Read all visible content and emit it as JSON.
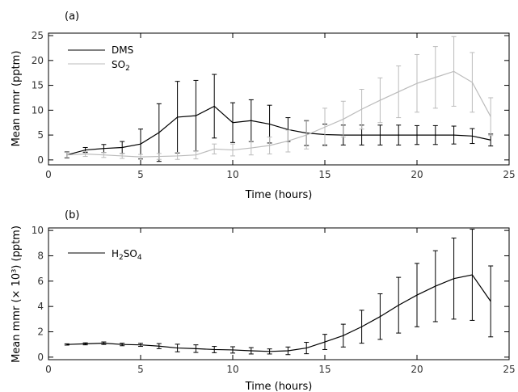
{
  "chart_data": [
    {
      "type": "line",
      "panel_label": "(a)",
      "xlabel": "Time (hours)",
      "ylabel": "Mean mmr (pptm)",
      "xlim": [
        0,
        25
      ],
      "ylim": [
        -1,
        25.5
      ],
      "xticks": [
        0,
        5,
        10,
        15,
        20,
        25
      ],
      "yticks": [
        0,
        5,
        10,
        15,
        20,
        25
      ],
      "grid": false,
      "legend_position": "top-left",
      "x": [
        1,
        2,
        3,
        4,
        5,
        6,
        7,
        8,
        9,
        10,
        11,
        12,
        13,
        14,
        15,
        16,
        17,
        18,
        19,
        20,
        21,
        22,
        23,
        24
      ],
      "series": [
        {
          "name": "DMS",
          "legend_base": "DMS",
          "legend_sub": "",
          "color": "#000000",
          "values": [
            1.0,
            2.0,
            2.3,
            2.5,
            3.2,
            5.5,
            8.6,
            8.9,
            10.8,
            7.5,
            7.9,
            7.2,
            6.1,
            5.4,
            5.1,
            5.0,
            5.0,
            5.0,
            5.0,
            5.0,
            5.0,
            5.0,
            4.8,
            4.0
          ],
          "err": [
            0.6,
            0.5,
            0.8,
            1.2,
            3.0,
            5.8,
            7.2,
            7.1,
            6.4,
            4.0,
            4.2,
            3.8,
            2.4,
            2.5,
            2.1,
            2.0,
            2.0,
            2.0,
            2.0,
            1.9,
            1.9,
            1.8,
            1.5,
            1.2
          ]
        },
        {
          "name": "SO2",
          "legend_base": "SO",
          "legend_sub": "2",
          "color": "#bbbbbb",
          "values": [
            1.0,
            1.2,
            1.0,
            0.8,
            0.6,
            0.7,
            0.8,
            1.0,
            2.2,
            2.0,
            2.4,
            2.9,
            3.8,
            5.0,
            6.6,
            8.2,
            10.2,
            12.0,
            13.7,
            15.4,
            16.6,
            17.8,
            15.6,
            8.7
          ],
          "err": [
            0.5,
            0.5,
            0.5,
            0.5,
            0.5,
            0.6,
            0.7,
            0.8,
            1.0,
            1.2,
            1.4,
            1.7,
            2.2,
            2.8,
            3.8,
            3.6,
            4.0,
            4.5,
            5.2,
            5.8,
            6.2,
            7.0,
            6.0,
            3.8
          ]
        }
      ]
    },
    {
      "type": "line",
      "panel_label": "(b)",
      "xlabel": "Time (hours)",
      "ylabel": "Mean mmr (× 10³) (pptm)",
      "xlim": [
        0,
        25
      ],
      "ylim": [
        -0.2,
        10.2
      ],
      "xticks": [
        0,
        5,
        10,
        15,
        20,
        25
      ],
      "yticks": [
        0,
        2,
        4,
        6,
        8,
        10
      ],
      "grid": false,
      "legend_position": "top-left",
      "x": [
        1,
        2,
        3,
        4,
        5,
        6,
        7,
        8,
        9,
        10,
        11,
        12,
        13,
        14,
        15,
        16,
        17,
        18,
        19,
        20,
        21,
        22,
        23,
        24
      ],
      "series": [
        {
          "name": "H2SO4",
          "legend_parts": [
            "H",
            "2",
            "SO",
            "4"
          ],
          "color": "#000000",
          "values": [
            1.0,
            1.05,
            1.1,
            1.0,
            0.97,
            0.87,
            0.72,
            0.67,
            0.6,
            0.57,
            0.5,
            0.45,
            0.5,
            0.72,
            1.2,
            1.7,
            2.4,
            3.2,
            4.1,
            4.9,
            5.6,
            6.2,
            6.5,
            4.4
          ],
          "err": [
            0.05,
            0.08,
            0.1,
            0.1,
            0.12,
            0.2,
            0.3,
            0.3,
            0.25,
            0.25,
            0.25,
            0.2,
            0.3,
            0.45,
            0.6,
            0.9,
            1.3,
            1.8,
            2.2,
            2.5,
            2.8,
            3.2,
            3.6,
            2.8
          ]
        }
      ]
    }
  ]
}
